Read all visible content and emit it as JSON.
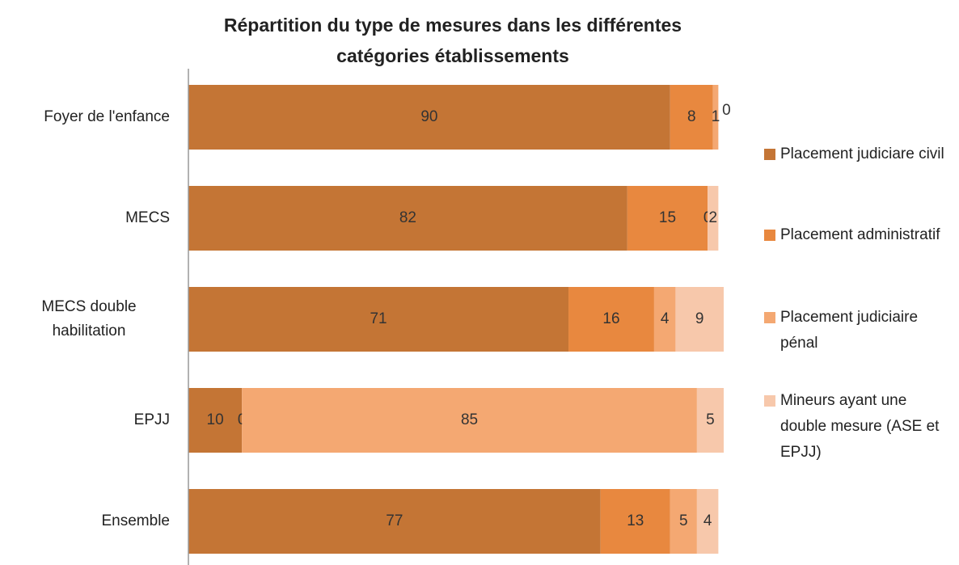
{
  "chart_data": {
    "type": "bar",
    "orientation": "horizontal",
    "stacked": true,
    "title": "Répartition du type de mesures dans les différentes catégories établissements",
    "categories": [
      "Foyer de l'enfance",
      "MECS",
      "MECS double habilitation",
      "EPJJ",
      "Ensemble"
    ],
    "xlim": [
      0,
      100
    ],
    "legend": "right",
    "series": [
      {
        "name": "Placement judiciare civil",
        "color": "#c47535",
        "values": [
          90,
          82,
          71,
          10,
          77
        ]
      },
      {
        "name": "Placement administratif",
        "color": "#e8883f",
        "values": [
          8,
          15,
          16,
          0,
          13
        ]
      },
      {
        "name": "Placement judiciaire pénal",
        "color": "#f4a872",
        "values": [
          1,
          0,
          4,
          85,
          5
        ]
      },
      {
        "name": "Mineurs ayant une double mesure (ASE et EPJJ)",
        "color": "#f7c8ab",
        "values": [
          0,
          2,
          9,
          5,
          4
        ]
      }
    ]
  }
}
